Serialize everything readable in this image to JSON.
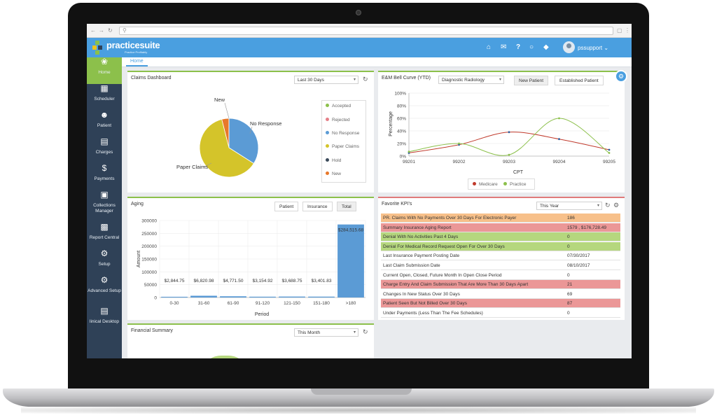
{
  "browser": {
    "url": "",
    "nav": {
      "back": "←",
      "forward": "→",
      "reload": "↻"
    }
  },
  "header": {
    "logo_text": "practicesuite",
    "logo_tagline": "Practice Profitably",
    "icons": [
      "home-icon",
      "mail-icon",
      "help-icon",
      "chat-icon",
      "tag-icon"
    ],
    "user": "pssupport"
  },
  "sidebar": {
    "items": [
      {
        "label": "Home",
        "icon": "brain-icon"
      },
      {
        "label": "Scheduler",
        "icon": "calendar-icon"
      },
      {
        "label": "Patient",
        "icon": "person-icon"
      },
      {
        "label": "Charges",
        "icon": "clipboard-icon"
      },
      {
        "label": "Payments",
        "icon": "dollar-icon"
      },
      {
        "label": "Collections Manager",
        "icon": "folder-icon"
      },
      {
        "label": "Report Central",
        "icon": "report-icon"
      },
      {
        "label": "Setup",
        "icon": "gear-icon"
      },
      {
        "label": "Advanced Setup",
        "icon": "gears-icon"
      },
      {
        "label": "linical Desktop",
        "icon": "desktop-icon"
      }
    ]
  },
  "tabs": {
    "home": "Home"
  },
  "claims": {
    "title": "Claims Dashboard",
    "range": "Last 30 Days",
    "legend": [
      {
        "label": "Accepted",
        "color": "#8cc04b"
      },
      {
        "label": "Rejected",
        "color": "#e57f88"
      },
      {
        "label": "No Response",
        "color": "#5b9bd5"
      },
      {
        "label": "Paper Claims",
        "color": "#d4c42a"
      },
      {
        "label": "Hold",
        "color": "#3b4a5a"
      },
      {
        "label": "New",
        "color": "#e8782a"
      }
    ],
    "slice_labels": {
      "new": "New",
      "no_response": "No Response",
      "paper": "Paper Claims"
    }
  },
  "bell": {
    "title": "E&M Bell Curve (YTD)",
    "specialty": "Diagnostic Radiology",
    "btn_new": "New Patient",
    "btn_established": "Established Patient",
    "legend": [
      {
        "label": "Medicare",
        "color": "#c0392b"
      },
      {
        "label": "Practice",
        "color": "#8cc04b"
      }
    ]
  },
  "aging": {
    "title": "Aging",
    "btn_patient": "Patient",
    "btn_insurance": "Insurance",
    "btn_total": "Total"
  },
  "kpi": {
    "title": "Favorite KPI's",
    "range": "This Year",
    "rows": [
      {
        "label": "PR. Claims With No Payments Over 30 Days For Electronic Payer",
        "value": "186",
        "color": "#f7c08a"
      },
      {
        "label": "Summary Insurance Aging Report",
        "value": "1579 , $176,728.49",
        "color": "#eb9797"
      },
      {
        "label": "Denial With No Activities Past 4 Days",
        "value": "0",
        "color": "#b5d77e"
      },
      {
        "label": "Denial For Medical Record Request Open For Over 30 Days",
        "value": "0",
        "color": "#b5d77e"
      },
      {
        "label": "Last Insurance Payment Posting Date",
        "value": "07/30/2017",
        "color": "#ffffff"
      },
      {
        "label": "Last Claim Submission Date",
        "value": "08/10/2017",
        "color": "#ffffff"
      },
      {
        "label": "Current Open, Closed, Future Month In Open Close Period",
        "value": "0",
        "color": "#ffffff"
      },
      {
        "label": "Charge Entry And Claim Submission That Are More Than 30 Days Apart",
        "value": "21",
        "color": "#eb9797"
      },
      {
        "label": "Changes In New Status Over 30 Days",
        "value": "69",
        "color": "#ffffff"
      },
      {
        "label": "Patient Seen But Not Billed Over 30 Days",
        "value": "87",
        "color": "#eb9797"
      },
      {
        "label": "Under Payments (Less Than The Fee Schedules)",
        "value": "0",
        "color": "#ffffff"
      }
    ]
  },
  "financial": {
    "title": "Financial Summary",
    "range": "This Month"
  },
  "chart_data": [
    {
      "type": "pie",
      "categories": [
        "New",
        "No Response",
        "Paper Claims"
      ],
      "values": [
        4,
        34,
        62
      ]
    },
    {
      "type": "line",
      "x": [
        "99201",
        "99202",
        "99203",
        "99204",
        "99205"
      ],
      "xlabel": "CPT",
      "ylabel": "Percentage",
      "ylim": [
        0,
        100
      ],
      "yticks": [
        "0%",
        "20%",
        "40%",
        "60%",
        "80%",
        "100%"
      ],
      "series": [
        {
          "name": "Medicare",
          "values": [
            5,
            18,
            38,
            27,
            10
          ]
        },
        {
          "name": "Practice",
          "values": [
            7,
            20,
            2,
            60,
            5
          ]
        }
      ],
      "legend": "bottom"
    },
    {
      "type": "bar",
      "categories": [
        "0-30",
        "31-60",
        "61-90",
        "91-120",
        "121-150",
        "151-180",
        ">180"
      ],
      "values": [
        2844.75,
        6820.98,
        4771.5,
        3154.92,
        3688.75,
        3401.83,
        284515.68
      ],
      "labels": [
        "$2,844.75",
        "$6,820.98",
        "$4,771.50",
        "$3,154.92",
        "$3,688.75",
        "$3,401.83",
        "$284,515.68"
      ],
      "xlabel": "Period",
      "ylabel": "Amount",
      "ylim": [
        0,
        300000
      ],
      "yticks": [
        0,
        50000,
        100000,
        150000,
        200000,
        250000,
        300000
      ]
    }
  ]
}
